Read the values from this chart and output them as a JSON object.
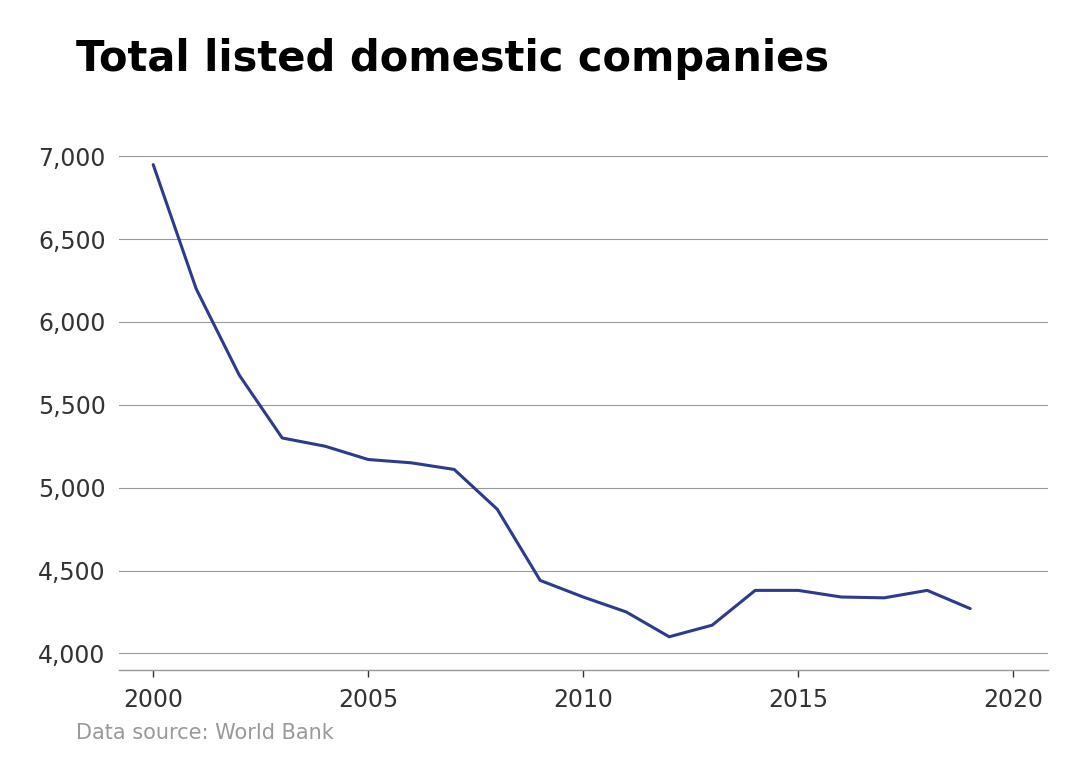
{
  "title": "Total listed domestic companies",
  "source": "Data source: World Bank",
  "line_color": "#2e3a8c",
  "line_width": 2.2,
  "background_color": "#ffffff",
  "grid_color": "#999999",
  "years": [
    2000,
    2001,
    2002,
    2003,
    2004,
    2005,
    2006,
    2007,
    2008,
    2009,
    2010,
    2011,
    2012,
    2013,
    2014,
    2015,
    2016,
    2017,
    2018,
    2019
  ],
  "values": [
    6950,
    6200,
    5680,
    5300,
    5250,
    5170,
    5150,
    5110,
    4870,
    4440,
    4340,
    4250,
    4100,
    4170,
    4380,
    4380,
    4340,
    4335,
    4380,
    4270
  ],
  "ylim": [
    3900,
    7200
  ],
  "yticks": [
    4000,
    4500,
    5000,
    5500,
    6000,
    6500,
    7000
  ],
  "xlim": [
    1999.2,
    2020.8
  ],
  "xticks": [
    2000,
    2005,
    2010,
    2015,
    2020
  ],
  "title_fontsize": 30,
  "tick_fontsize": 17,
  "source_fontsize": 15,
  "source_color": "#999999",
  "tick_color": "#333333"
}
